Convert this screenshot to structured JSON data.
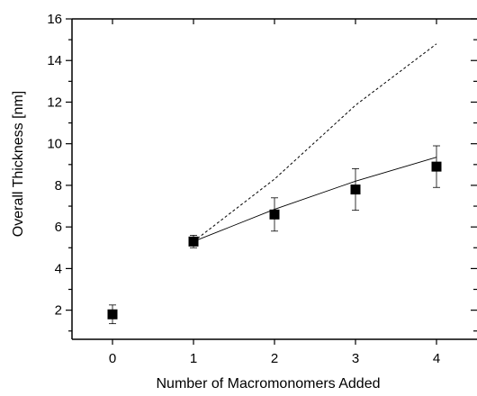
{
  "chart_data": {
    "type": "scatter",
    "xlabel": "Number of Macromonomers Added",
    "ylabel": "Overall Thickness [nm]",
    "xlim": [
      -0.5,
      4.5
    ],
    "ylim": [
      0.6,
      16
    ],
    "x_ticks": [
      0,
      1,
      2,
      3,
      4
    ],
    "y_ticks": [
      2,
      4,
      6,
      8,
      10,
      12,
      14,
      16
    ],
    "grid": false,
    "legend": "none",
    "series": [
      {
        "kind": "points_with_error_bars",
        "marker": "square",
        "color": "#000000",
        "x": [
          0,
          1,
          2,
          3,
          4
        ],
        "y": [
          1.8,
          5.3,
          6.6,
          7.8,
          8.9
        ],
        "y_error": [
          0.45,
          0.3,
          0.8,
          1.0,
          1.0
        ]
      },
      {
        "kind": "line",
        "style": "solid",
        "color": "#000000",
        "x": [
          1,
          2,
          3,
          4
        ],
        "y": [
          5.3,
          6.85,
          8.2,
          9.35
        ]
      },
      {
        "kind": "line",
        "style": "dashed",
        "color": "#000000",
        "x": [
          1,
          2,
          3,
          4
        ],
        "y": [
          5.3,
          8.3,
          11.85,
          14.8
        ]
      }
    ]
  }
}
